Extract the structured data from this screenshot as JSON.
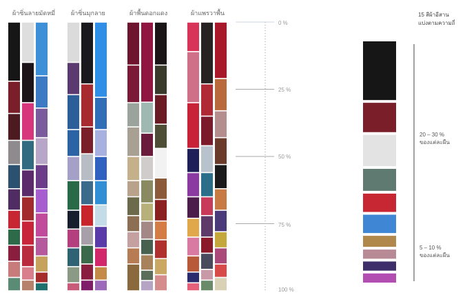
{
  "header": {
    "groups": [
      "ผ้าซิ่นลายมัดหมี่",
      "ผ้าซิ่นมุกลาย",
      "ผ้าพื้นดอกแดง",
      "ผ้าแพรวาพื้น"
    ]
  },
  "legend": {
    "title_line1": "15 สีผ้าอีสาน",
    "title_line2": "แบ่งตามความถี่",
    "range_high": "20 – 30 %",
    "range_high_sub": "ของแต่ละผืน",
    "range_low": "5 – 10 %",
    "range_low_sub": "ของแต่ละผืน"
  },
  "chart_data": {
    "type": "stacked-bar",
    "orientation": "vertical",
    "y_axis": {
      "ticks": [
        "0 %",
        "25 %",
        "50 %",
        "75 %",
        "100 %"
      ],
      "range": [
        0,
        100
      ],
      "direction": "top-to-bottom"
    },
    "groups": [
      {
        "name": "ผ้าซิ่นลายมัดหมี่",
        "columns": [
          [
            [
              22,
              "#161616"
            ],
            [
              12,
              "#7a1f2a"
            ],
            [
              10,
              "#4e1a22"
            ],
            [
              9,
              "#8f8a8d"
            ],
            [
              9,
              "#2c5170"
            ],
            [
              8,
              "#4f2d63"
            ],
            [
              7,
              "#c72633"
            ],
            [
              6,
              "#2c6a4a"
            ],
            [
              6,
              "#8a1e3e"
            ],
            [
              6,
              "#c87b7b"
            ],
            [
              5,
              "#5a8c75"
            ]
          ],
          [
            [
              15,
              "#dedede"
            ],
            [
              15,
              "#1c1418"
            ],
            [
              14,
              "#d7367d"
            ],
            [
              11,
              "#306b82"
            ],
            [
              10,
              "#5a2a6a"
            ],
            [
              9,
              "#a32a2d"
            ],
            [
              9,
              "#c8243a"
            ],
            [
              8,
              "#b92a3e"
            ],
            [
              5,
              "#d87e8c"
            ],
            [
              4,
              "#b7826c"
            ]
          ],
          [
            [
              20,
              "#3d8fd8"
            ],
            [
              12,
              "#3c7ac4"
            ],
            [
              11,
              "#7a5c9d"
            ],
            [
              10,
              "#b8a6c9"
            ],
            [
              9,
              "#6b3c8a"
            ],
            [
              9,
              "#a75fcf"
            ],
            [
              9,
              "#c24a9a"
            ],
            [
              7,
              "#b55a9c"
            ],
            [
              6,
              "#c7a25c"
            ],
            [
              4,
              "#a62b2b"
            ],
            [
              3,
              "#1f6f6f"
            ]
          ]
        ]
      },
      {
        "name": "ผ้าซิ่นมุกลาย",
        "columns": [
          [
            [
              15,
              "#dbdbdb"
            ],
            [
              12,
              "#5b3a70"
            ],
            [
              13,
              "#2c5f9a"
            ],
            [
              10,
              "#2c63a4"
            ],
            [
              9,
              "#a4a0c8"
            ],
            [
              11,
              "#286a48"
            ],
            [
              7,
              "#161e2e"
            ],
            [
              7,
              "#b33f7e"
            ],
            [
              7,
              "#2f6272"
            ],
            [
              6,
              "#8b9a84"
            ],
            [
              3,
              "#c85a7a"
            ]
          ],
          [
            [
              23,
              "#1a1a1e"
            ],
            [
              16,
              "#a72a30"
            ],
            [
              10,
              "#7a1f2a"
            ],
            [
              10,
              "#b8bcc4"
            ],
            [
              9,
              "#3c6a8a"
            ],
            [
              8,
              "#c8242c"
            ],
            [
              7,
              "#a8a0a8"
            ],
            [
              7,
              "#3a6a4a"
            ],
            [
              6,
              "#8a1e3e"
            ],
            [
              4,
              "#7f1d6a"
            ]
          ],
          [
            [
              28,
              "#2f8ee6"
            ],
            [
              12,
              "#306fb8"
            ],
            [
              10,
              "#a8b0e0"
            ],
            [
              9,
              "#3060c0"
            ],
            [
              9,
              "#2f8ed4"
            ],
            [
              8,
              "#c4dce8"
            ],
            [
              8,
              "#5a3aa8"
            ],
            [
              7,
              "#d0286a"
            ],
            [
              5,
              "#c48a48"
            ],
            [
              4,
              "#9b6ab8"
            ]
          ]
        ]
      },
      {
        "name": "ผ้าพื้นดอกแดง",
        "columns": [
          [
            [
              16,
              "#6e1430"
            ],
            [
              14,
              "#7a1a38"
            ],
            [
              9,
              "#9aa49c"
            ],
            [
              11,
              "#a8a092"
            ],
            [
              9,
              "#c4b08a"
            ],
            [
              6,
              "#b8a28a"
            ],
            [
              7,
              "#6b6a4a"
            ],
            [
              6,
              "#8c6e52"
            ],
            [
              6,
              "#c4a0a0"
            ],
            [
              6,
              "#b87c54"
            ],
            [
              10,
              "#8a6a3c"
            ]
          ],
          [
            [
              31,
              "#8e1640"
            ],
            [
              12,
              "#9fb8b2"
            ],
            [
              9,
              "#6a1a3a"
            ],
            [
              9,
              "#d0cccc"
            ],
            [
              9,
              "#8a8a62"
            ],
            [
              7,
              "#b8b07a"
            ],
            [
              7,
              "#a48888"
            ],
            [
              6,
              "#486050"
            ],
            [
              6,
              "#a8825a"
            ],
            [
              4,
              "#5a6e5a"
            ],
            [
              4,
              "#b6a4c4"
            ]
          ],
          [
            [
              16,
              "#1a1416"
            ],
            [
              11,
              "#3a3a2c"
            ],
            [
              11,
              "#6a1a22"
            ],
            [
              9,
              "#4e4e36"
            ],
            [
              11,
              "#f2f2f2"
            ],
            [
              8,
              "#8a5a3a"
            ],
            [
              8,
              "#8a2020"
            ],
            [
              7,
              "#d47c46"
            ],
            [
              7,
              "#b03030"
            ],
            [
              6,
              "#c8a862"
            ],
            [
              6,
              "#d48c8c"
            ]
          ]
        ]
      },
      {
        "name": "ผ้าแพรวาพื้น",
        "columns": [
          [
            [
              11,
              "#d8345a"
            ],
            [
              19,
              "#d07088"
            ],
            [
              17,
              "#c82238"
            ],
            [
              9,
              "#1e1e58"
            ],
            [
              9,
              "#8a3aa0"
            ],
            [
              8,
              "#4c1c4a"
            ],
            [
              7,
              "#e0a84a"
            ],
            [
              7,
              "#d87aa2"
            ],
            [
              6,
              "#b85a3a"
            ],
            [
              4,
              "#2a2a6e"
            ],
            [
              3,
              "#e4607a"
            ]
          ],
          [
            [
              23,
              "#262222"
            ],
            [
              12,
              "#b02a36"
            ],
            [
              11,
              "#7a1a2a"
            ],
            [
              10,
              "#b8c2cc"
            ],
            [
              9,
              "#2a6e8a"
            ],
            [
              7,
              "#c83a5a"
            ],
            [
              8,
              "#5e3a6a"
            ],
            [
              6,
              "#8a1a2a"
            ],
            [
              6,
              "#4a4a5e"
            ],
            [
              4,
              "#c89aa8"
            ],
            [
              4,
              "#6a8a6a"
            ]
          ],
          [
            [
              21,
              "#a8182a"
            ],
            [
              12,
              "#b86a3c"
            ],
            [
              10,
              "#b48e8e"
            ],
            [
              10,
              "#6a3a2a"
            ],
            [
              9,
              "#1a1a1a"
            ],
            [
              8,
              "#c87a44"
            ],
            [
              8,
              "#4a3a7a"
            ],
            [
              6,
              "#c4a83e"
            ],
            [
              6,
              "#aa4a7a"
            ],
            [
              5,
              "#d84a4a"
            ],
            [
              5,
              "#d8d1b6"
            ]
          ]
        ]
      }
    ],
    "legend_swatches": [
      {
        "color": "#161616",
        "weight": 3.2
      },
      {
        "color": "#7a1f2a",
        "weight": 1.6
      },
      {
        "color": "#e3e3e3",
        "weight": 1.7
      },
      {
        "color": "#5f7a70",
        "weight": 1.2
      },
      {
        "color": "#c72633",
        "weight": 1.0
      },
      {
        "color": "#3f86d4",
        "weight": 1.0
      },
      {
        "color": "#b0884c",
        "weight": 0.6
      },
      {
        "color": "#b88a96",
        "weight": 0.5
      },
      {
        "color": "#3e2e6a",
        "weight": 0.5
      },
      {
        "color": "#b24eb2",
        "weight": 0.5
      }
    ]
  }
}
